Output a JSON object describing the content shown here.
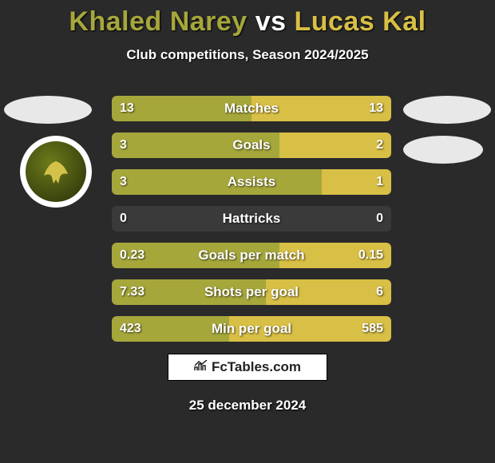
{
  "title": {
    "player1": "Khaled Narey",
    "vs": "vs",
    "player2": "Lucas Kal"
  },
  "subtitle": "Club competitions, Season 2024/2025",
  "colors": {
    "p1": "#a6a73b",
    "p2": "#d8bf45",
    "bar_bg": "#3a3a3a",
    "page_bg": "#2a2a2a"
  },
  "stats": [
    {
      "label": "Matches",
      "v1": "13",
      "v2": "13",
      "pct1": 50,
      "pct2": 50
    },
    {
      "label": "Goals",
      "v1": "3",
      "v2": "2",
      "pct1": 60,
      "pct2": 40
    },
    {
      "label": "Assists",
      "v1": "3",
      "v2": "1",
      "pct1": 75,
      "pct2": 25
    },
    {
      "label": "Hattricks",
      "v1": "0",
      "v2": "0",
      "pct1": 0,
      "pct2": 0
    },
    {
      "label": "Goals per match",
      "v1": "0.23",
      "v2": "0.15",
      "pct1": 60,
      "pct2": 40
    },
    {
      "label": "Shots per goal",
      "v1": "7.33",
      "v2": "6",
      "pct1": 55,
      "pct2": 45
    },
    {
      "label": "Min per goal",
      "v1": "423",
      "v2": "585",
      "pct1": 42,
      "pct2": 58
    }
  ],
  "footer": {
    "brand": "FcTables.com",
    "date": "25 december 2024"
  }
}
